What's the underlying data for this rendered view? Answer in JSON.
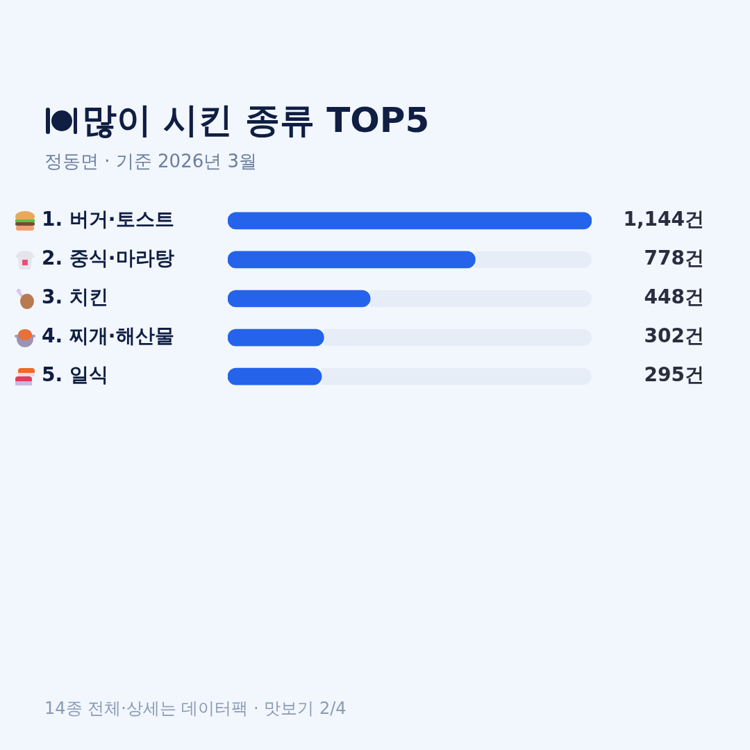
{
  "chart_data": {
    "type": "bar",
    "orientation": "horizontal",
    "title": "많이 시킨 종류 TOP5",
    "subtitle": "정동면 · 기준 2026년 3월",
    "categories": [
      "1. 버거·토스트",
      "2. 중식·마라탕",
      "3. 치킨",
      "4. 찌개·해산물",
      "5. 일식"
    ],
    "values": [
      1144,
      778,
      448,
      302,
      295
    ],
    "value_labels": [
      "1,144건",
      "778건",
      "448건",
      "302건",
      "295건"
    ],
    "color": "#2563eb",
    "grid": false,
    "legend": false,
    "annotations": [
      "14종 전체·상세는 데이터팩 · 맛보기 2/4"
    ]
  }
}
